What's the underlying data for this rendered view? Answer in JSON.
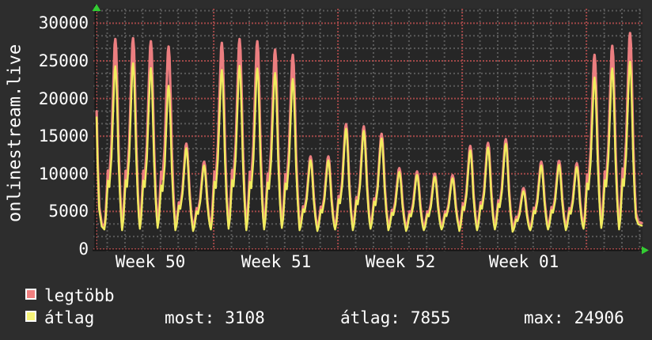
{
  "page": {
    "background": "#2d2d2d",
    "plot_background": "#262626"
  },
  "ylabel": "onlinestream.live",
  "yaxis": {
    "ticks": [
      "30000",
      "25000",
      "20000",
      "15000",
      "10000",
      "5000",
      "0"
    ]
  },
  "xaxis": {
    "labels": [
      "Week 50",
      "Week 51",
      "Week 52",
      "Week 01"
    ]
  },
  "legend": {
    "series": [
      {
        "label": "legtöbb",
        "color": "#f08080"
      },
      {
        "label": "átlag",
        "color": "#f5f378"
      }
    ],
    "stats": [
      {
        "label": "most:",
        "value": "3108"
      },
      {
        "label": "átlag:",
        "value": "7855"
      },
      {
        "label": "max:",
        "value": "24906"
      }
    ]
  },
  "icons": {
    "arrow_up": "axis-arrow-up",
    "arrow_right": "axis-arrow-right",
    "arrow_color": "#33cc33"
  },
  "chart_data": {
    "type": "line",
    "title": "onlinestream.live viewers",
    "x_week_labels": [
      "Week 50",
      "Week 51",
      "Week 52",
      "Week 01"
    ],
    "ylim": [
      0,
      32000
    ],
    "y_major_step": 5000,
    "y_minor_step": 1666.67,
    "days_shown": 31,
    "grid": {
      "minor_color": "#5a5a5a",
      "major_color": "#a04848",
      "axis_color": "#141414"
    },
    "waveform": [
      [
        -0.62,
        0
      ],
      [
        -0.55,
        0.06
      ],
      [
        -0.42,
        0.3
      ],
      [
        -0.34,
        0.26
      ],
      [
        -0.22,
        0.44
      ],
      [
        -0.1,
        0.8
      ],
      [
        -0.04,
        0.97
      ],
      [
        0,
        1
      ],
      [
        0.05,
        0.94
      ],
      [
        0.11,
        0.72
      ],
      [
        0.18,
        0.42
      ],
      [
        0.27,
        0.18
      ],
      [
        0.33,
        0.07
      ]
    ],
    "series": [
      {
        "name": "legtöbb",
        "color": "#eb7e80",
        "peaks": [
          27900,
          28000,
          27600,
          26900,
          14000,
          11600,
          27400,
          27900,
          27600,
          26500,
          25800,
          12300,
          12300,
          16600,
          16300,
          15300,
          10750,
          10300,
          10000,
          9800,
          13700,
          14100,
          14600,
          8100,
          11600,
          11700,
          11400,
          25800,
          27000,
          28700
        ],
        "trough_offset": 350,
        "lead": [
          [
            0.4,
            18300
          ],
          [
            0.46,
            11800
          ],
          [
            0.55,
            5600
          ],
          [
            0.69,
            3350
          ]
        ],
        "tail": [
          [
            30.92,
            3650
          ],
          [
            31.12,
            3458
          ]
        ]
      },
      {
        "name": "átlag",
        "color": "#f0ec5e",
        "peaks": [
          24300,
          24700,
          24050,
          21700,
          13400,
          11100,
          23800,
          24350,
          24000,
          23400,
          22600,
          11800,
          11800,
          16000,
          15700,
          14700,
          10250,
          9850,
          9600,
          9400,
          13100,
          13500,
          14000,
          7700,
          11100,
          11200,
          10900,
          22800,
          24000,
          24906
        ],
        "troughs": [
          2600,
          2500,
          2700,
          2800,
          2500,
          2400,
          2600,
          2700,
          2500,
          2600,
          2800,
          2500,
          2400,
          2600,
          2500,
          2700,
          2500,
          2400,
          2500,
          2600,
          2400,
          2500,
          2600,
          2300,
          2500,
          2600,
          2500,
          2700,
          2800,
          2600
        ],
        "lead": [
          [
            0.4,
            17500
          ],
          [
            0.46,
            11000
          ],
          [
            0.55,
            5200
          ],
          [
            0.69,
            3000
          ]
        ],
        "tail": [
          [
            30.92,
            3300
          ],
          [
            31.12,
            3108
          ]
        ]
      }
    ],
    "stats": {
      "most": 3108,
      "atlag": 7855,
      "max": 24906
    }
  }
}
